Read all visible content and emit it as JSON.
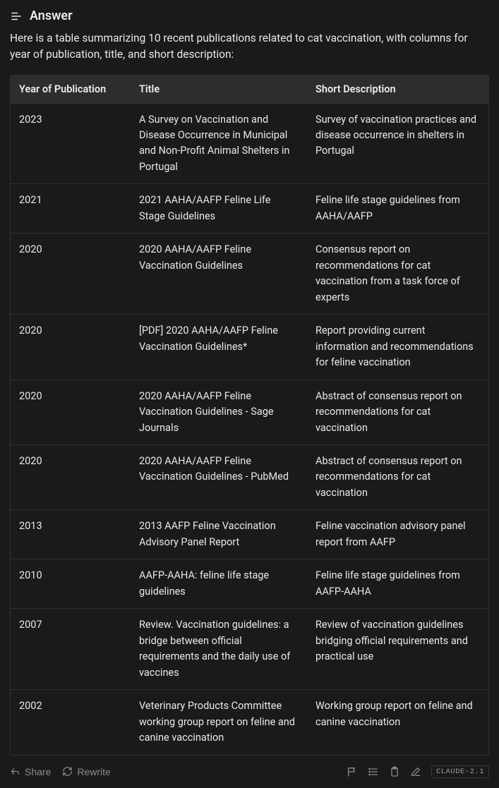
{
  "header": {
    "title": "Answer"
  },
  "intro": "Here is a table summarizing 10 recent publications related to cat vaccination, with columns for year of publication, title, and short description:",
  "table": {
    "columns": [
      "Year of Publication",
      "Title",
      "Short Description"
    ],
    "rows": [
      [
        "2023",
        "A Survey on Vaccination and Disease Occurrence in Municipal and Non-Profit Animal Shelters in Portugal",
        "Survey of vaccination practices and disease occurrence in shelters in Portugal"
      ],
      [
        "2021",
        "2021 AAHA/AAFP Feline Life Stage Guidelines",
        "Feline life stage guidelines from AAHA/AAFP"
      ],
      [
        "2020",
        "2020 AAHA/AAFP Feline Vaccination Guidelines",
        "Consensus report on recommendations for cat vaccination from a task force of experts"
      ],
      [
        "2020",
        "[PDF] 2020 AAHA/AAFP Feline Vaccination Guidelines*",
        "Report providing current information and recommendations for feline vaccination"
      ],
      [
        "2020",
        "2020 AAHA/AAFP Feline Vaccination Guidelines - Sage Journals",
        "Abstract of consensus report on recommendations for cat vaccination"
      ],
      [
        "2020",
        "2020 AAHA/AAFP Feline Vaccination Guidelines - PubMed",
        "Abstract of consensus report on recommendations for cat vaccination"
      ],
      [
        "2013",
        "2013 AAFP Feline Vaccination Advisory Panel Report",
        "Feline vaccination advisory panel report from AAFP"
      ],
      [
        "2010",
        "AAFP-AAHA: feline life stage guidelines",
        "Feline life stage guidelines from AAFP-AAHA"
      ],
      [
        "2007",
        "Review. Vaccination guidelines: a bridge between official requirements and the daily use of vaccines",
        "Review of vaccination guidelines bridging official requirements and practical use"
      ],
      [
        "2002",
        "Veterinary Products Committee working group report on feline and canine vaccination",
        "Working group report on feline and canine vaccination"
      ]
    ]
  },
  "footer": {
    "share": "Share",
    "rewrite": "Rewrite",
    "model": "CLAUDE-2.1"
  },
  "colors": {
    "bg": "#191a1a",
    "text": "#e8e8e6",
    "header_bg": "#2c2d2e",
    "border": "#2f3031",
    "muted": "#8a8c8d"
  }
}
